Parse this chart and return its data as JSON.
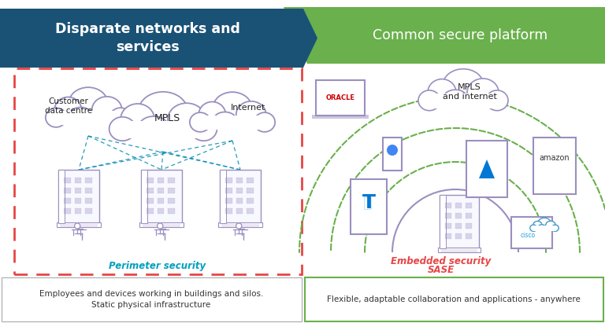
{
  "bg_color": "#ffffff",
  "left_header_color": "#1a5276",
  "right_header_color": "#6ab04c",
  "left_header_text": "Disparate networks and\nservices",
  "right_header_text": "Common secure platform",
  "header_text_color": "#ffffff",
  "left_box_border_color": "#e84545",
  "left_label_color": "#00a0c0",
  "left_label": "Perimeter security",
  "left_bottom_text": "Employees and devices working in buildings and silos.\nStatic physical infrastructure",
  "right_label_color": "#e84545",
  "right_label_line1": "Embedded security",
  "right_label_line2": "SASE",
  "right_bottom_text": "Flexible, adaptable collaboration and applications - anywhere",
  "right_bottom_border": "#6ab04c",
  "cloud_color": "#9b8fc0",
  "dashed_line_color": "#008aad",
  "green_arc_color": "#6ab04c",
  "figure_width": 7.68,
  "figure_height": 4.11,
  "dpi": 100
}
